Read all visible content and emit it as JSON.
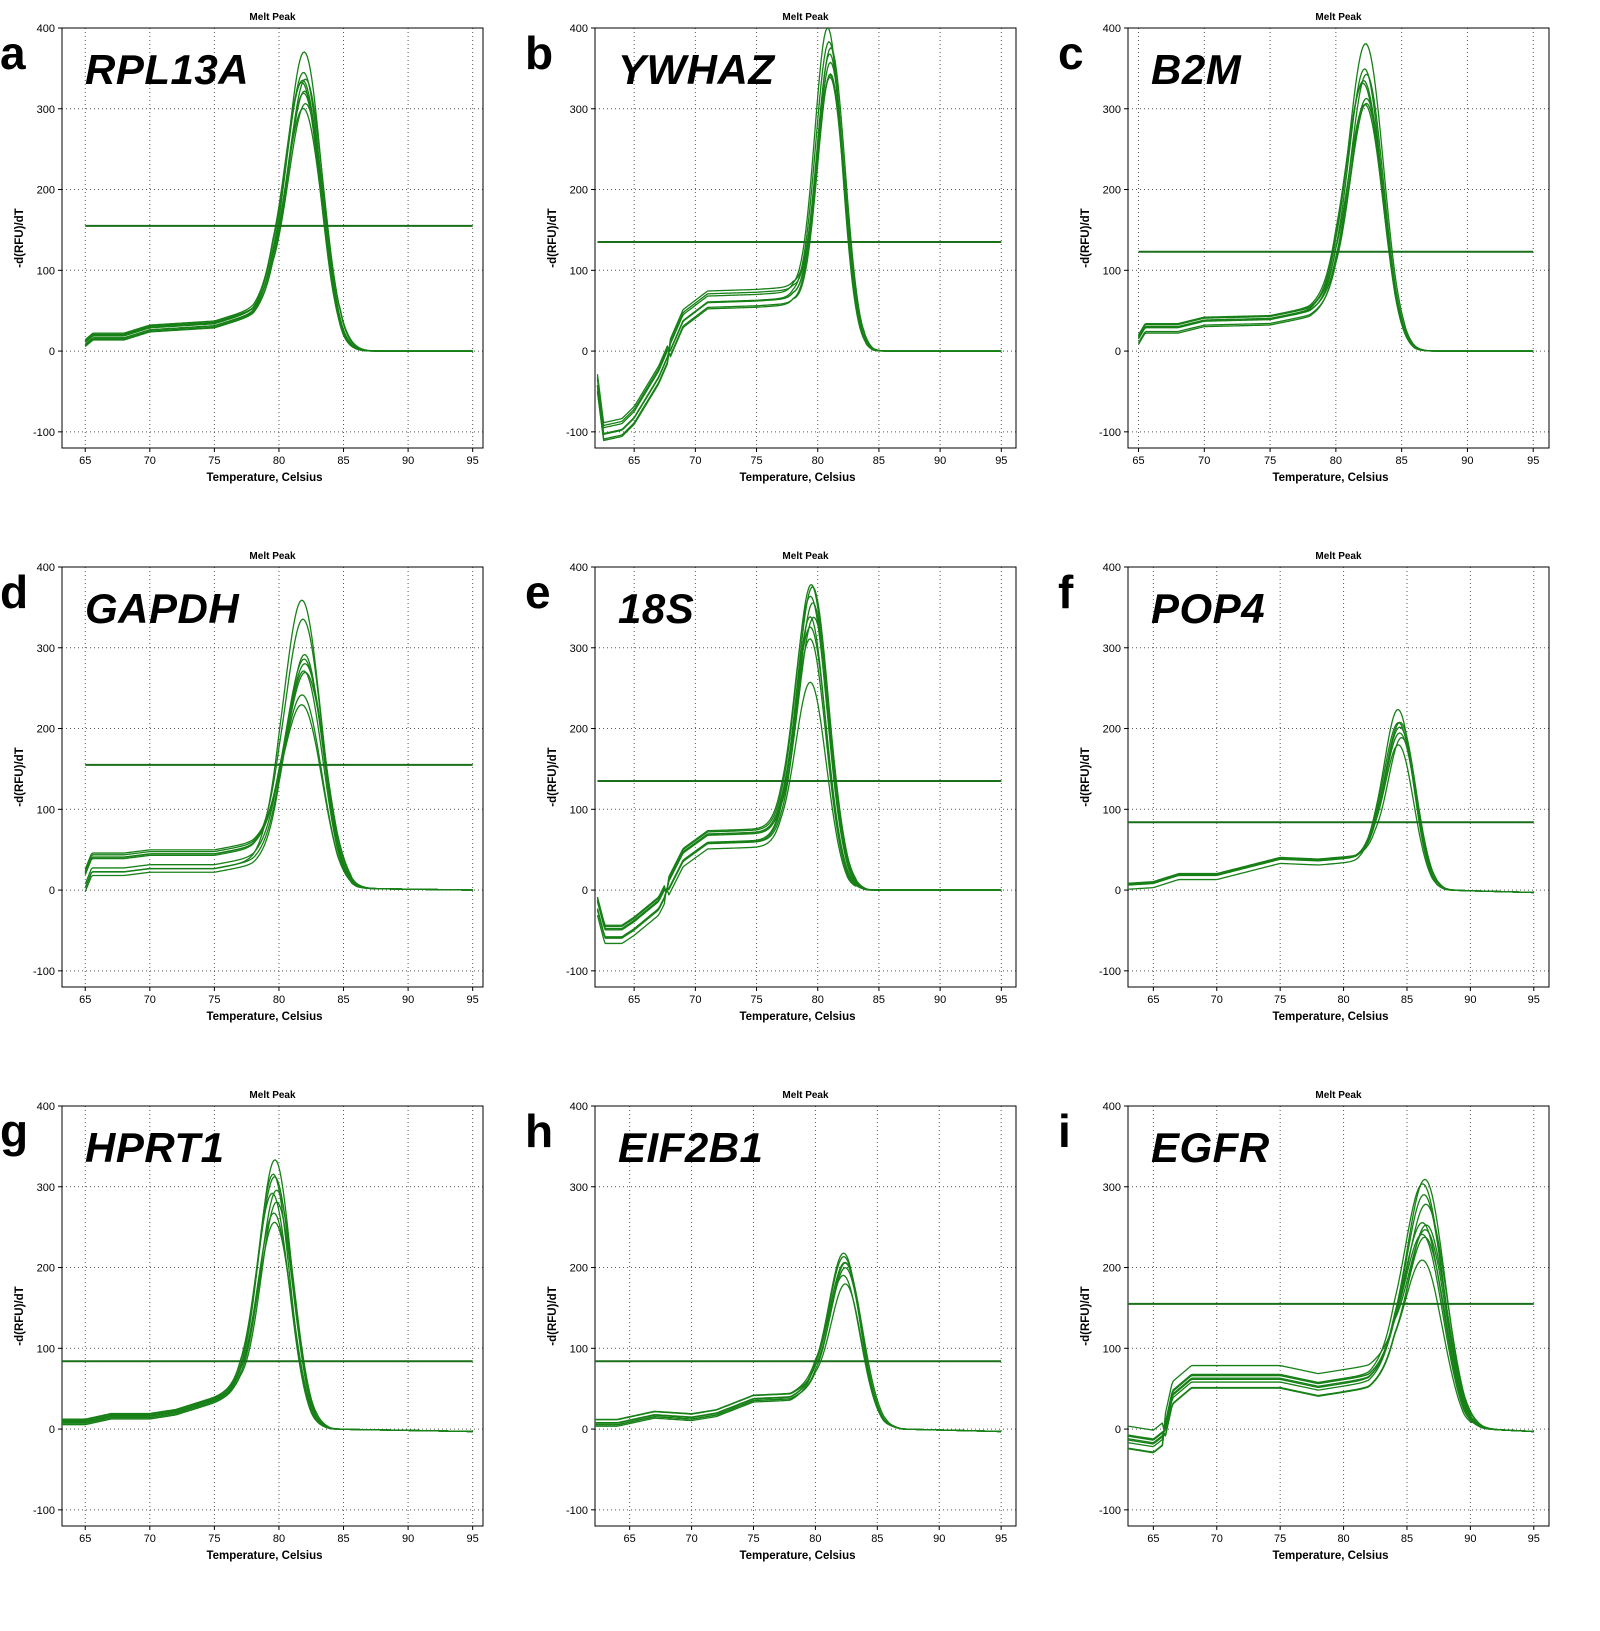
{
  "chart_data": [
    {
      "type": "line",
      "letter": "a",
      "gene": "RPL13A",
      "title": "Melt Peak",
      "xlabel": "Temperature, Celsius",
      "ylabel": "-d(RFU)/dT",
      "xlim": [
        63.2,
        95.8
      ],
      "ylim": [
        -120,
        400
      ],
      "xticks": [
        65,
        70,
        75,
        80,
        85,
        90,
        95
      ],
      "yticks": [
        -100,
        0,
        100,
        200,
        300,
        400
      ],
      "x_start": 65,
      "threshold": 155,
      "peak_x": 82,
      "peak_heights": [
        370,
        348,
        342,
        336,
        330,
        325,
        318,
        312,
        305
      ],
      "peak_width": 1.35,
      "baseline": [
        [
          65,
          12
        ],
        [
          65.6,
          20
        ],
        [
          68,
          20
        ],
        [
          70,
          30
        ],
        [
          75,
          35
        ],
        [
          78,
          50
        ],
        [
          79.5,
          70
        ],
        [
          84,
          8
        ],
        [
          85,
          0
        ],
        [
          95,
          0
        ]
      ],
      "spread": 7,
      "grid": true,
      "legend": "none"
    },
    {
      "type": "line",
      "letter": "b",
      "gene": "YWHAZ",
      "title": "Melt Peak",
      "xlabel": "Temperature, Celsius",
      "ylabel": "-d(RFU)/dT",
      "xlim": [
        61.8,
        96.2
      ],
      "ylim": [
        -120,
        400
      ],
      "xticks": [
        65,
        70,
        75,
        80,
        85,
        90,
        95
      ],
      "yticks": [
        -100,
        0,
        100,
        200,
        300,
        400
      ],
      "x_start": 62,
      "threshold": 135,
      "peak_x": 81,
      "peak_heights": [
        395,
        385,
        378,
        368,
        360,
        352,
        342,
        330
      ],
      "peak_width": 1.1,
      "baseline": [
        [
          62,
          -40
        ],
        [
          62.5,
          -100
        ],
        [
          64,
          -95
        ],
        [
          65,
          -80
        ],
        [
          67,
          -30
        ],
        [
          69,
          40
        ],
        [
          71,
          63
        ],
        [
          75,
          65
        ],
        [
          78,
          68
        ],
        [
          83.5,
          5
        ],
        [
          84.5,
          0
        ],
        [
          95,
          0
        ]
      ],
      "spread": 12,
      "grid": true,
      "legend": "none"
    },
    {
      "type": "line",
      "letter": "c",
      "gene": "B2M",
      "title": "Melt Peak",
      "xlabel": "Temperature, Celsius",
      "ylabel": "-d(RFU)/dT",
      "xlim": [
        64.2,
        96.2
      ],
      "ylim": [
        -120,
        400
      ],
      "xticks": [
        65,
        70,
        75,
        80,
        85,
        90,
        95
      ],
      "yticks": [
        -100,
        0,
        100,
        200,
        300,
        400
      ],
      "x_start": 65,
      "threshold": 123,
      "peak_x": 82.3,
      "peak_heights": [
        375,
        348,
        340,
        332,
        325,
        318,
        310,
        300
      ],
      "peak_width": 1.3,
      "baseline": [
        [
          65,
          14
        ],
        [
          65.5,
          28
        ],
        [
          68,
          28
        ],
        [
          70,
          36
        ],
        [
          75,
          38
        ],
        [
          78,
          48
        ],
        [
          80,
          65
        ],
        [
          84.5,
          6
        ],
        [
          86,
          0
        ],
        [
          95,
          0
        ]
      ],
      "spread": 6,
      "grid": true,
      "legend": "none"
    },
    {
      "type": "line",
      "letter": "d",
      "gene": "GAPDH",
      "title": "Melt Peak",
      "xlabel": "Temperature, Celsius",
      "ylabel": "-d(RFU)/dT",
      "xlim": [
        63.2,
        95.8
      ],
      "ylim": [
        -120,
        400
      ],
      "xticks": [
        65,
        70,
        75,
        80,
        85,
        90,
        95
      ],
      "yticks": [
        -100,
        0,
        100,
        200,
        300,
        400
      ],
      "x_start": 65,
      "threshold": 155,
      "peak_x": 82,
      "peak_heights": [
        368,
        328,
        305,
        290,
        280,
        268,
        255,
        232,
        220
      ],
      "peak_width": 1.4,
      "baseline": [
        [
          65,
          12
        ],
        [
          65.5,
          32
        ],
        [
          68,
          32
        ],
        [
          70,
          36
        ],
        [
          75,
          36
        ],
        [
          78,
          45
        ],
        [
          80,
          60
        ],
        [
          84.5,
          6
        ],
        [
          86,
          2
        ],
        [
          95,
          0
        ]
      ],
      "spread": 14,
      "grid": true,
      "legend": "none"
    },
    {
      "type": "line",
      "letter": "e",
      "gene": "18S",
      "title": "Melt Peak",
      "xlabel": "Temperature, Celsius",
      "ylabel": "-d(RFU)/dT",
      "xlim": [
        61.8,
        96.2
      ],
      "ylim": [
        -120,
        400
      ],
      "xticks": [
        65,
        70,
        75,
        80,
        85,
        90,
        95
      ],
      "yticks": [
        -100,
        0,
        100,
        200,
        300,
        400
      ],
      "x_start": 62,
      "threshold": 135,
      "peak_x": 79.6,
      "peak_heights": [
        378,
        368,
        360,
        352,
        342,
        330,
        318,
        305,
        268
      ],
      "peak_width": 1.25,
      "baseline": [
        [
          62,
          -20
        ],
        [
          62.6,
          -55
        ],
        [
          64,
          -55
        ],
        [
          65,
          -45
        ],
        [
          67,
          -20
        ],
        [
          69,
          40
        ],
        [
          71,
          62
        ],
        [
          75,
          64
        ],
        [
          77,
          66
        ],
        [
          82.5,
          5
        ],
        [
          84,
          0
        ],
        [
          95,
          0
        ]
      ],
      "spread": 12,
      "grid": true,
      "legend": "none"
    },
    {
      "type": "line",
      "letter": "f",
      "gene": "POP4",
      "title": "Melt Peak",
      "xlabel": "Temperature, Celsius",
      "ylabel": "-d(RFU)/dT",
      "xlim": [
        63.0,
        96.2
      ],
      "ylim": [
        -120,
        400
      ],
      "xticks": [
        65,
        70,
        75,
        80,
        85,
        90,
        95
      ],
      "yticks": [
        -100,
        0,
        100,
        200,
        300,
        400
      ],
      "x_start": 63,
      "threshold": 84,
      "peak_x": 84.5,
      "peak_heights": [
        222,
        212,
        206,
        200,
        194,
        186,
        178
      ],
      "peak_width": 1.15,
      "baseline": [
        [
          63,
          6
        ],
        [
          65,
          8
        ],
        [
          67,
          18
        ],
        [
          70,
          18
        ],
        [
          73,
          30
        ],
        [
          75,
          38
        ],
        [
          78,
          36
        ],
        [
          81,
          40
        ],
        [
          82.5,
          48
        ],
        [
          87,
          4
        ],
        [
          88,
          0
        ],
        [
          95,
          -3
        ]
      ],
      "spread": 6,
      "grid": true,
      "legend": "none"
    },
    {
      "type": "line",
      "letter": "g",
      "gene": "HPRT1",
      "title": "Melt Peak",
      "xlabel": "Temperature, Celsius",
      "ylabel": "-d(RFU)/dT",
      "xlim": [
        63.2,
        95.8
      ],
      "ylim": [
        -120,
        400
      ],
      "xticks": [
        65,
        70,
        75,
        80,
        85,
        90,
        95
      ],
      "yticks": [
        -100,
        0,
        100,
        200,
        300,
        400
      ],
      "x_start": 63.2,
      "threshold": 84,
      "peak_x": 79.7,
      "peak_heights": [
        330,
        318,
        308,
        298,
        290,
        280,
        268,
        255
      ],
      "peak_width": 1.25,
      "baseline": [
        [
          63.2,
          8
        ],
        [
          65,
          8
        ],
        [
          67,
          15
        ],
        [
          70,
          15
        ],
        [
          72,
          20
        ],
        [
          75,
          35
        ],
        [
          77,
          48
        ],
        [
          82.5,
          4
        ],
        [
          84,
          0
        ],
        [
          95,
          -3
        ]
      ],
      "spread": 5,
      "grid": true,
      "legend": "none"
    },
    {
      "type": "line",
      "letter": "h",
      "gene": "EIF2B1",
      "title": "Melt Peak",
      "xlabel": "Temperature, Celsius",
      "ylabel": "-d(RFU)/dT",
      "xlim": [
        62.2,
        96.2
      ],
      "ylim": [
        -120,
        400
      ],
      "xticks": [
        65,
        70,
        75,
        80,
        85,
        90,
        95
      ],
      "yticks": [
        -100,
        0,
        100,
        200,
        300,
        400
      ],
      "x_start": 62.2,
      "threshold": 84,
      "peak_x": 82.5,
      "peak_heights": [
        222,
        214,
        208,
        202,
        196,
        190,
        182
      ],
      "peak_width": 1.25,
      "baseline": [
        [
          62.2,
          8
        ],
        [
          64,
          8
        ],
        [
          67,
          18
        ],
        [
          70,
          15
        ],
        [
          72,
          20
        ],
        [
          75,
          38
        ],
        [
          78,
          40
        ],
        [
          80,
          55
        ],
        [
          85.5,
          4
        ],
        [
          87,
          0
        ],
        [
          95,
          -3
        ]
      ],
      "spread": 5,
      "grid": true,
      "legend": "none"
    },
    {
      "type": "line",
      "letter": "i",
      "gene": "EGFR",
      "title": "Melt Peak",
      "xlabel": "Temperature, Celsius",
      "ylabel": "-d(RFU)/dT",
      "xlim": [
        63.0,
        96.2
      ],
      "ylim": [
        -120,
        400
      ],
      "xticks": [
        65,
        70,
        75,
        80,
        85,
        90,
        95
      ],
      "yticks": [
        -100,
        0,
        100,
        200,
        300,
        400
      ],
      "x_start": 63,
      "threshold": 155,
      "peak_x": 86.5,
      "peak_heights": [
        315,
        300,
        288,
        276,
        266,
        258,
        250,
        242,
        232,
        222
      ],
      "peak_width": 1.45,
      "baseline": [
        [
          63,
          -10
        ],
        [
          65,
          -15
        ],
        [
          65.8,
          -5
        ],
        [
          66.5,
          45
        ],
        [
          68,
          65
        ],
        [
          75,
          65
        ],
        [
          78,
          55
        ],
        [
          82,
          65
        ],
        [
          84,
          85
        ],
        [
          89.5,
          5
        ],
        [
          91,
          0
        ],
        [
          95,
          -3
        ]
      ],
      "spread": 15,
      "grid": true,
      "legend": "none"
    }
  ],
  "colors": {
    "curve": "#178017",
    "threshold": "#1a6f1a",
    "grid": "#555555",
    "frame": "#000000"
  }
}
